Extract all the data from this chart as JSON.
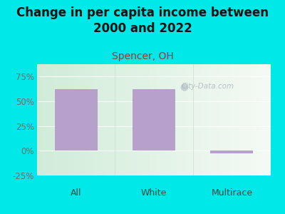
{
  "title": "Change in per capita income between\n2000 and 2022",
  "subtitle": "Spencer, OH",
  "categories": [
    "All",
    "White",
    "Multirace"
  ],
  "values": [
    62,
    62,
    -3
  ],
  "bar_color": "#b8a0cc",
  "background_color": "#00e8e8",
  "title_fontsize": 12,
  "title_color": "#111111",
  "subtitle_fontsize": 10,
  "subtitle_color": "#aa3333",
  "tick_label_color": "#886666",
  "xticklabel_color": "#444444",
  "ylim": [
    -25,
    87.5
  ],
  "yticks": [
    -25,
    0,
    25,
    50,
    75
  ],
  "ytick_labels": [
    "-25%",
    "0%",
    "25%",
    "50%",
    "75%"
  ],
  "watermark": "City-Data.com",
  "plot_bg_color_left": "#d0ecd8",
  "plot_bg_color_right": "#f0f8f0"
}
